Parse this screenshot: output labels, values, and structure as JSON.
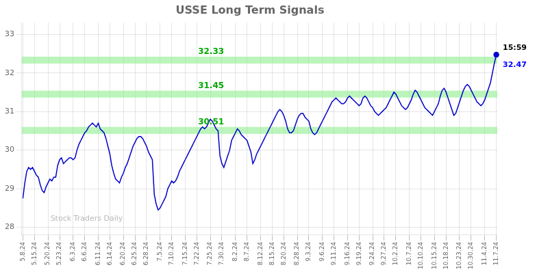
{
  "chart_data": {
    "type": "line",
    "title": "USSE Long Term Signals",
    "grid": true,
    "ylim": [
      27.8,
      33.3
    ],
    "yticks": [
      28,
      29,
      30,
      31,
      32,
      33
    ],
    "signal_levels": [
      {
        "value": 30.51,
        "label": "30.51",
        "from": 30.42,
        "to": 30.6
      },
      {
        "value": 31.45,
        "label": "31.45",
        "from": 31.36,
        "to": 31.54
      },
      {
        "value": 32.33,
        "label": "32.33",
        "from": 32.24,
        "to": 32.42
      }
    ],
    "signal_color": "#00aa00",
    "signal_band_color": "#90ee90",
    "annotations": [
      {
        "text": "15:59",
        "color": "black"
      },
      {
        "text": "32.47",
        "color": "blue"
      }
    ],
    "watermark": "Stock Traders Daily",
    "categories": [
      "5.8.24",
      null,
      null,
      null,
      null,
      null,
      "5.15.24",
      null,
      null,
      null,
      null,
      null,
      null,
      "5.20.24",
      null,
      null,
      null,
      null,
      null,
      "5.23.24",
      null,
      null,
      null,
      null,
      null,
      null,
      "6.3.24",
      null,
      null,
      null,
      null,
      null,
      "6.6.24",
      null,
      null,
      null,
      null,
      null,
      null,
      "6.11.24",
      null,
      null,
      null,
      null,
      null,
      "6.14.24",
      null,
      null,
      null,
      null,
      null,
      null,
      "6.20.24",
      null,
      null,
      null,
      null,
      null,
      "6.25.24",
      null,
      null,
      null,
      null,
      null,
      "6.28.24",
      null,
      null,
      null,
      null,
      null,
      null,
      "7.5.24",
      null,
      null,
      null,
      null,
      null,
      "7.10.24",
      null,
      null,
      null,
      null,
      null,
      null,
      "7.15.24",
      null,
      null,
      null,
      null,
      null,
      "7.22.24",
      null,
      null,
      null,
      null,
      null,
      null,
      "7.25.24",
      null,
      null,
      null,
      null,
      null,
      "7.30.24",
      null,
      null,
      null,
      null,
      null,
      null,
      "8.2.24",
      null,
      null,
      null,
      null,
      null,
      "8.7.24",
      null,
      null,
      null,
      null,
      null,
      null,
      "8.12.24",
      null,
      null,
      null,
      null,
      null,
      "8.15.24",
      null,
      null,
      null,
      null,
      null,
      "8.20.24",
      null,
      null,
      null,
      null,
      null,
      null,
      "8.28.24",
      null,
      null,
      null,
      null,
      null,
      "9.3.24",
      null,
      null,
      null,
      null,
      null,
      null,
      "9.6.24",
      null,
      null,
      null,
      null,
      null,
      "9.11.24",
      null,
      null,
      null,
      null,
      null,
      null,
      "9.16.24",
      null,
      null,
      null,
      null,
      null,
      "9.19.24",
      null,
      null,
      null,
      null,
      null,
      null,
      "9.24.24",
      null,
      null,
      null,
      null,
      null,
      "9.27.24",
      null,
      null,
      null,
      null,
      null,
      "10.2.24",
      null,
      null,
      null,
      null,
      null,
      null,
      "10.7.24",
      null,
      null,
      null,
      null,
      null,
      "10.10.24",
      null,
      null,
      null,
      null,
      null,
      null,
      "10.15.24",
      null,
      null,
      null,
      null,
      null,
      "10.18.24",
      null,
      null,
      null,
      null,
      null,
      null,
      "10.23.24",
      null,
      null,
      null,
      null,
      null,
      "10.30.24",
      null,
      null,
      null,
      null,
      null,
      null,
      "11.4.24",
      null,
      null,
      null,
      null,
      null,
      "11.7.24"
    ],
    "series": [
      {
        "color": "#0000cc",
        "marker": "last",
        "values": [
          28.75,
          29.15,
          29.45,
          29.55,
          29.5,
          29.55,
          29.45,
          29.35,
          29.3,
          29.1,
          28.95,
          28.9,
          29.05,
          29.15,
          29.25,
          29.2,
          29.3,
          29.3,
          29.6,
          29.75,
          29.8,
          29.65,
          29.7,
          29.75,
          29.8,
          29.8,
          29.75,
          29.8,
          30.0,
          30.15,
          30.25,
          30.35,
          30.45,
          30.5,
          30.6,
          30.65,
          30.7,
          30.65,
          30.6,
          30.7,
          30.55,
          30.5,
          30.45,
          30.3,
          30.1,
          29.9,
          29.6,
          29.4,
          29.25,
          29.2,
          29.15,
          29.3,
          29.4,
          29.55,
          29.65,
          29.8,
          29.95,
          30.1,
          30.2,
          30.3,
          30.35,
          30.35,
          30.3,
          30.2,
          30.1,
          29.95,
          29.85,
          29.75,
          28.85,
          28.6,
          28.45,
          28.5,
          28.6,
          28.7,
          28.8,
          29.0,
          29.1,
          29.2,
          29.15,
          29.2,
          29.3,
          29.45,
          29.55,
          29.65,
          29.75,
          29.85,
          29.95,
          30.05,
          30.15,
          30.25,
          30.35,
          30.45,
          30.55,
          30.6,
          30.55,
          30.6,
          30.7,
          30.8,
          30.75,
          30.65,
          30.55,
          30.5,
          29.85,
          29.65,
          29.55,
          29.7,
          29.85,
          30.0,
          30.25,
          30.35,
          30.45,
          30.55,
          30.5,
          30.4,
          30.35,
          30.3,
          30.25,
          30.1,
          29.95,
          29.65,
          29.75,
          29.9,
          30.0,
          30.1,
          30.2,
          30.3,
          30.4,
          30.5,
          30.6,
          30.7,
          30.8,
          30.9,
          31.0,
          31.05,
          31.0,
          30.9,
          30.75,
          30.55,
          30.45,
          30.45,
          30.5,
          30.65,
          30.8,
          30.9,
          30.95,
          30.95,
          30.85,
          30.8,
          30.75,
          30.55,
          30.45,
          30.4,
          30.45,
          30.55,
          30.65,
          30.75,
          30.85,
          30.95,
          31.05,
          31.15,
          31.25,
          31.3,
          31.35,
          31.3,
          31.25,
          31.2,
          31.2,
          31.25,
          31.35,
          31.4,
          31.35,
          31.3,
          31.25,
          31.2,
          31.15,
          31.2,
          31.35,
          31.4,
          31.35,
          31.25,
          31.15,
          31.1,
          31.0,
          30.95,
          30.9,
          30.95,
          31.0,
          31.05,
          31.1,
          31.2,
          31.3,
          31.4,
          31.5,
          31.45,
          31.35,
          31.25,
          31.15,
          31.1,
          31.05,
          31.1,
          31.2,
          31.3,
          31.45,
          31.55,
          31.5,
          31.4,
          31.3,
          31.2,
          31.1,
          31.05,
          31.0,
          30.95,
          30.9,
          31.0,
          31.1,
          31.2,
          31.4,
          31.55,
          31.6,
          31.5,
          31.35,
          31.2,
          31.05,
          30.9,
          30.95,
          31.1,
          31.25,
          31.4,
          31.55,
          31.65,
          31.7,
          31.65,
          31.55,
          31.45,
          31.35,
          31.25,
          31.2,
          31.15,
          31.2,
          31.3,
          31.45,
          31.6,
          31.75,
          32.0,
          32.25,
          32.47
        ]
      }
    ]
  }
}
